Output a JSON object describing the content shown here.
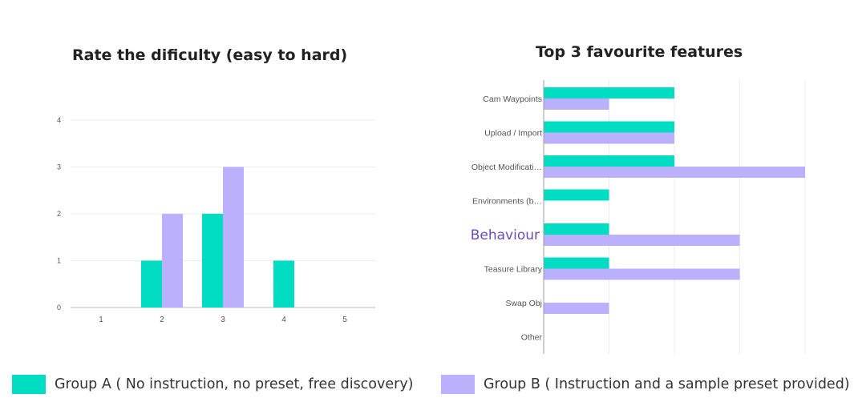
{
  "colors": {
    "group_a": "#00DDC2",
    "group_b": "#BAB0FB",
    "highlight_label": "#6A4DBA"
  },
  "legend": {
    "group_a": "Group A ( No instruction, no preset, free discovery)",
    "group_b": "Group B ( Instruction and a sample preset provided)"
  },
  "chart_data": [
    {
      "type": "bar",
      "title": "Rate the dificulty (easy to hard)",
      "categories": [
        "1",
        "2",
        "3",
        "4",
        "5"
      ],
      "series": [
        {
          "name": "Group A ( No instruction, no preset, free discovery)",
          "values": [
            0,
            1,
            2,
            1,
            0
          ]
        },
        {
          "name": "Group B ( Instruction and a sample preset provided)",
          "values": [
            0,
            2,
            3,
            0,
            0
          ]
        }
      ],
      "yticks": [
        "0",
        "1",
        "2",
        "3",
        "4"
      ],
      "ylim": [
        0,
        4
      ],
      "grid": true,
      "legend_position": "bottom"
    },
    {
      "type": "bar",
      "orientation": "horizontal",
      "title": "Top 3 favourite features",
      "categories": [
        "Cam Waypoints",
        "Upload / Import",
        "Object Modificati…",
        "Environments (b…",
        "Behaviour",
        "Teasure Library",
        "Swap Obj",
        "Other"
      ],
      "highlighted_category": "Behaviour",
      "series": [
        {
          "name": "Group A ( No instruction, no preset, free discovery)",
          "values": [
            2,
            2,
            2,
            1,
            1,
            1,
            0,
            0
          ]
        },
        {
          "name": "Group B ( Instruction and a sample preset provided)",
          "values": [
            1,
            2,
            4,
            0,
            3,
            3,
            1,
            0
          ]
        }
      ],
      "xlim": [
        0,
        4
      ],
      "grid": true,
      "legend_position": "bottom"
    }
  ]
}
